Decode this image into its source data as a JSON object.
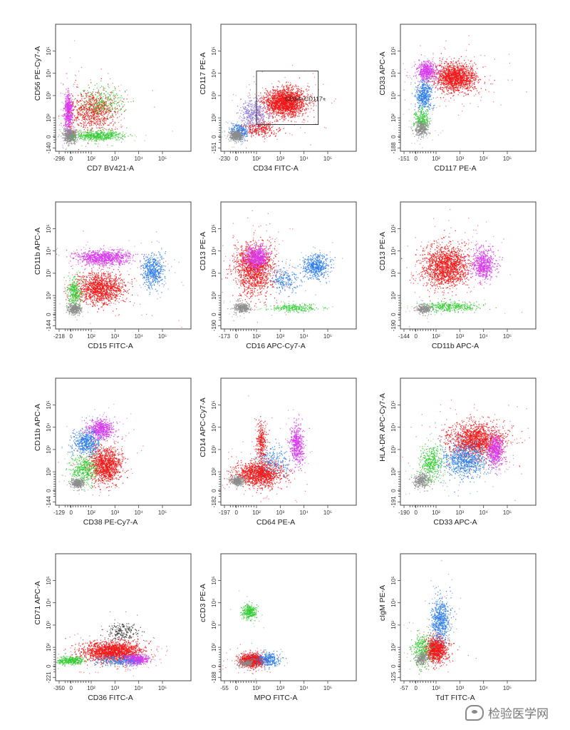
{
  "colors": {
    "red": "#f01818",
    "magenta": "#d838f0",
    "blue": "#2b7de8",
    "green": "#33cc33",
    "gray": "#8c8c8c",
    "purple": "#8a78d8",
    "dark": "#3a3a3a"
  },
  "watermark": {
    "text": "检验医学网",
    "icon": "wechat-icon"
  },
  "chart_data": [
    {
      "type": "scatter",
      "xlabel": "CD7 BV421-A",
      "ylabel": "CD56 PE-Cy7-A",
      "x_ticks": [
        "-296",
        "0",
        "10²",
        "10³",
        "10⁴",
        "10⁵"
      ],
      "y_ticks": [
        "-140",
        "0",
        "10²",
        "10³",
        "10⁴",
        "10⁵"
      ],
      "xlim": [
        -0.4,
        5.3
      ],
      "ylim": [
        -0.4,
        5.3
      ],
      "populations": [
        {
          "color": "gray",
          "center": [
            0.2,
            0.3
          ],
          "spread": [
            0.25,
            0.3
          ],
          "count": 500
        },
        {
          "color": "magenta",
          "center": [
            0.15,
            1.4
          ],
          "spread": [
            0.15,
            0.7
          ],
          "count": 500
        },
        {
          "color": "red",
          "center": [
            1.2,
            1.4
          ],
          "spread": [
            0.9,
            0.8
          ],
          "count": 800
        },
        {
          "color": "green",
          "center": [
            1.4,
            0.3
          ],
          "spread": [
            0.9,
            0.2
          ],
          "count": 500
        },
        {
          "color": "green",
          "center": [
            1.6,
            1.8
          ],
          "spread": [
            0.8,
            0.6
          ],
          "count": 250
        }
      ]
    },
    {
      "type": "scatter",
      "xlabel": "CD34 FITC-A",
      "ylabel": "CD117 PE-A",
      "x_ticks": [
        "-230",
        "0",
        "10²",
        "10³",
        "10⁴",
        "10⁵"
      ],
      "y_ticks": [
        "-151",
        "0",
        "10²",
        "10³",
        "10⁴",
        "10⁵"
      ],
      "xlim": [
        -0.4,
        5.3
      ],
      "ylim": [
        -0.4,
        5.3
      ],
      "gate": {
        "label": "CD34+CD117+",
        "x": [
          1.1,
          3.7
        ],
        "y": [
          0.8,
          3.2
        ]
      },
      "populations": [
        {
          "color": "red",
          "center": [
            2.3,
            1.8
          ],
          "spread": [
            0.75,
            0.55
          ],
          "count": 1900
        },
        {
          "color": "red",
          "center": [
            1.2,
            0.6
          ],
          "spread": [
            0.7,
            0.3
          ],
          "count": 300
        },
        {
          "color": "purple",
          "center": [
            1.0,
            1.3
          ],
          "spread": [
            0.5,
            0.6
          ],
          "count": 400
        },
        {
          "color": "blue",
          "center": [
            0.4,
            0.5
          ],
          "spread": [
            0.35,
            0.3
          ],
          "count": 250
        },
        {
          "color": "gray",
          "center": [
            0.25,
            0.3
          ],
          "spread": [
            0.25,
            0.2
          ],
          "count": 350
        }
      ]
    },
    {
      "type": "scatter",
      "xlabel": "CD117 PE-A",
      "ylabel": "CD33 APC-A",
      "x_ticks": [
        "-151",
        "0",
        "10²",
        "10³",
        "10⁴",
        "10⁵"
      ],
      "y_ticks": [
        "-188",
        "0",
        "10²",
        "10³",
        "10⁴",
        "10⁵"
      ],
      "xlim": [
        -0.4,
        5.3
      ],
      "ylim": [
        -0.4,
        5.3
      ],
      "populations": [
        {
          "color": "red",
          "center": [
            1.9,
            2.9
          ],
          "spread": [
            0.8,
            0.55
          ],
          "count": 1500
        },
        {
          "color": "magenta",
          "center": [
            0.7,
            3.2
          ],
          "spread": [
            0.35,
            0.4
          ],
          "count": 500
        },
        {
          "color": "blue",
          "center": [
            0.6,
            2.1
          ],
          "spread": [
            0.3,
            0.6
          ],
          "count": 450
        },
        {
          "color": "green",
          "center": [
            0.5,
            1.0
          ],
          "spread": [
            0.3,
            0.4
          ],
          "count": 250
        },
        {
          "color": "gray",
          "center": [
            0.5,
            0.6
          ],
          "spread": [
            0.25,
            0.3
          ],
          "count": 300
        }
      ]
    },
    {
      "type": "scatter",
      "xlabel": "CD15 FITC-A",
      "ylabel": "CD11b APC-A",
      "x_ticks": [
        "-218",
        "0",
        "10²",
        "10³",
        "10⁴",
        "10⁵"
      ],
      "y_ticks": [
        "-144",
        "0",
        "10²",
        "10³",
        "10⁴",
        "10⁵"
      ],
      "xlim": [
        -0.4,
        5.3
      ],
      "ylim": [
        -0.4,
        5.3
      ],
      "populations": [
        {
          "color": "magenta",
          "center": [
            1.6,
            2.8
          ],
          "spread": [
            1.0,
            0.3
          ],
          "count": 900
        },
        {
          "color": "red",
          "center": [
            1.5,
            1.4
          ],
          "spread": [
            0.9,
            0.6
          ],
          "count": 1300
        },
        {
          "color": "blue",
          "center": [
            3.7,
            2.2
          ],
          "spread": [
            0.4,
            0.65
          ],
          "count": 500
        },
        {
          "color": "green",
          "center": [
            0.4,
            1.2
          ],
          "spread": [
            0.25,
            0.6
          ],
          "count": 300
        },
        {
          "color": "gray",
          "center": [
            0.4,
            0.5
          ],
          "spread": [
            0.25,
            0.2
          ],
          "count": 300
        }
      ]
    },
    {
      "type": "scatter",
      "xlabel": "CD16 APC-Cy7-A",
      "ylabel": "CD13 PE-A",
      "x_ticks": [
        "-173",
        "0",
        "10²",
        "10³",
        "10⁴",
        "10⁵"
      ],
      "y_ticks": [
        "-190",
        "0",
        "10²",
        "10³",
        "10⁴",
        "10⁵"
      ],
      "xlim": [
        -0.4,
        5.3
      ],
      "ylim": [
        -0.4,
        5.3
      ],
      "populations": [
        {
          "color": "red",
          "center": [
            1.0,
            2.3
          ],
          "spread": [
            0.7,
            1.0
          ],
          "count": 1400
        },
        {
          "color": "magenta",
          "center": [
            1.1,
            2.8
          ],
          "spread": [
            0.45,
            0.45
          ],
          "count": 600
        },
        {
          "color": "blue",
          "center": [
            3.6,
            2.4
          ],
          "spread": [
            0.5,
            0.45
          ],
          "count": 500
        },
        {
          "color": "blue",
          "center": [
            2.3,
            1.8
          ],
          "spread": [
            0.6,
            0.5
          ],
          "count": 200
        },
        {
          "color": "green",
          "center": [
            2.7,
            0.55
          ],
          "spread": [
            1.0,
            0.15
          ],
          "count": 250
        },
        {
          "color": "gray",
          "center": [
            0.5,
            0.55
          ],
          "spread": [
            0.3,
            0.2
          ],
          "count": 300
        }
      ]
    },
    {
      "type": "scatter",
      "xlabel": "CD11b APC-A",
      "ylabel": "CD13 PE-A",
      "x_ticks": [
        "-144",
        "0",
        "10²",
        "10³",
        "10⁴",
        "10⁵"
      ],
      "y_ticks": [
        "-190",
        "0",
        "10²",
        "10³",
        "10⁴",
        "10⁵"
      ],
      "xlim": [
        -0.4,
        5.3
      ],
      "ylim": [
        -0.4,
        5.3
      ],
      "populations": [
        {
          "color": "red",
          "center": [
            1.5,
            2.4
          ],
          "spread": [
            0.85,
            0.8
          ],
          "count": 1600
        },
        {
          "color": "magenta",
          "center": [
            3.1,
            2.5
          ],
          "spread": [
            0.45,
            0.6
          ],
          "count": 600
        },
        {
          "color": "green",
          "center": [
            1.7,
            0.6
          ],
          "spread": [
            1.0,
            0.2
          ],
          "count": 350
        },
        {
          "color": "gray",
          "center": [
            0.6,
            0.5
          ],
          "spread": [
            0.3,
            0.2
          ],
          "count": 250
        }
      ]
    },
    {
      "type": "scatter",
      "xlabel": "CD38 PE-Cy7-A",
      "ylabel": "CD11b APC-A",
      "x_ticks": [
        "-129",
        "0",
        "10²",
        "10³",
        "10⁴",
        "10⁵"
      ],
      "y_ticks": [
        "-144",
        "0",
        "10²",
        "10³",
        "10⁴",
        "10⁵"
      ],
      "xlim": [
        -0.4,
        5.3
      ],
      "ylim": [
        -0.4,
        5.3
      ],
      "populations": [
        {
          "color": "magenta",
          "center": [
            1.5,
            3.0
          ],
          "spread": [
            0.45,
            0.4
          ],
          "count": 600
        },
        {
          "color": "blue",
          "center": [
            0.9,
            2.4
          ],
          "spread": [
            0.5,
            0.5
          ],
          "count": 500
        },
        {
          "color": "red",
          "center": [
            1.7,
            1.4
          ],
          "spread": [
            0.6,
            0.7
          ],
          "count": 1200
        },
        {
          "color": "green",
          "center": [
            0.8,
            1.2
          ],
          "spread": [
            0.5,
            0.6
          ],
          "count": 400
        },
        {
          "color": "gray",
          "center": [
            0.5,
            0.6
          ],
          "spread": [
            0.25,
            0.2
          ],
          "count": 300
        }
      ]
    },
    {
      "type": "scatter",
      "xlabel": "CD64 PE-A",
      "ylabel": "CD14 APC-Cy7-A",
      "x_ticks": [
        "-197",
        "0",
        "10²",
        "10³",
        "10⁴",
        "10⁵"
      ],
      "y_ticks": [
        "-182",
        "0",
        "10²",
        "10³",
        "10⁴",
        "10⁵"
      ],
      "xlim": [
        -0.4,
        5.3
      ],
      "ylim": [
        -0.4,
        5.3
      ],
      "populations": [
        {
          "color": "red",
          "center": [
            1.2,
            1.0
          ],
          "spread": [
            0.9,
            0.5
          ],
          "count": 1300
        },
        {
          "color": "red",
          "center": [
            1.3,
            2.4
          ],
          "spread": [
            0.2,
            0.8
          ],
          "count": 300
        },
        {
          "color": "magenta",
          "center": [
            2.8,
            2.3
          ],
          "spread": [
            0.25,
            0.8
          ],
          "count": 500
        },
        {
          "color": "blue",
          "center": [
            1.8,
            1.6
          ],
          "spread": [
            0.6,
            0.6
          ],
          "count": 200
        },
        {
          "color": "gray",
          "center": [
            0.3,
            0.7
          ],
          "spread": [
            0.25,
            0.2
          ],
          "count": 300
        }
      ]
    },
    {
      "type": "scatter",
      "xlabel": "CD33 APC-A",
      "ylabel": "HLA-DR APC-Cy7-A",
      "x_ticks": [
        "-190",
        "0",
        "10²",
        "10³",
        "10⁴",
        "10⁵"
      ],
      "y_ticks": [
        "-191",
        "0",
        "10²",
        "10³",
        "10⁴",
        "10⁵"
      ],
      "xlim": [
        -0.4,
        5.3
      ],
      "ylim": [
        -0.4,
        5.3
      ],
      "populations": [
        {
          "color": "red",
          "center": [
            2.8,
            2.5
          ],
          "spread": [
            1.0,
            0.7
          ],
          "count": 1600
        },
        {
          "color": "blue",
          "center": [
            2.3,
            1.6
          ],
          "spread": [
            0.8,
            0.7
          ],
          "count": 800
        },
        {
          "color": "magenta",
          "center": [
            3.6,
            2.0
          ],
          "spread": [
            0.3,
            0.6
          ],
          "count": 500
        },
        {
          "color": "green",
          "center": [
            0.9,
            1.5
          ],
          "spread": [
            0.4,
            0.7
          ],
          "count": 400
        },
        {
          "color": "gray",
          "center": [
            0.5,
            0.7
          ],
          "spread": [
            0.3,
            0.3
          ],
          "count": 300
        }
      ]
    },
    {
      "type": "scatter",
      "xlabel": "CD36 FITC-A",
      "ylabel": "CD71 APC-A",
      "x_ticks": [
        "-350",
        "0",
        "10²",
        "10³",
        "10⁴",
        "10⁵"
      ],
      "y_ticks": [
        "-221",
        "0",
        "10²",
        "10³",
        "10⁴",
        "10⁵"
      ],
      "xlim": [
        -0.4,
        5.3
      ],
      "ylim": [
        -0.4,
        5.3
      ],
      "populations": [
        {
          "color": "red",
          "center": [
            2.0,
            0.9
          ],
          "spread": [
            1.1,
            0.4
          ],
          "count": 1800
        },
        {
          "color": "magenta",
          "center": [
            3.0,
            0.55
          ],
          "spread": [
            0.45,
            0.2
          ],
          "count": 500
        },
        {
          "color": "blue",
          "center": [
            2.2,
            0.5
          ],
          "spread": [
            0.9,
            0.2
          ],
          "count": 250
        },
        {
          "color": "green",
          "center": [
            0.2,
            0.5
          ],
          "spread": [
            0.5,
            0.15
          ],
          "count": 350
        },
        {
          "color": "dark",
          "center": [
            2.4,
            1.8
          ],
          "spread": [
            0.5,
            0.35
          ],
          "count": 200
        }
      ]
    },
    {
      "type": "scatter",
      "xlabel": "MPO FITC-A",
      "ylabel": "cCD3 PE-A",
      "x_ticks": [
        "-55",
        "0",
        "10²",
        "10³",
        "10⁴",
        "10⁵"
      ],
      "y_ticks": [
        "-188",
        "0",
        "10²",
        "10³",
        "10⁴",
        "10⁵"
      ],
      "xlim": [
        -0.4,
        5.3
      ],
      "ylim": [
        -0.4,
        5.3
      ],
      "populations": [
        {
          "color": "red",
          "center": [
            0.9,
            0.5
          ],
          "spread": [
            0.45,
            0.25
          ],
          "count": 1200
        },
        {
          "color": "blue",
          "center": [
            1.6,
            0.55
          ],
          "spread": [
            0.45,
            0.25
          ],
          "count": 300
        },
        {
          "color": "green",
          "center": [
            0.8,
            2.7
          ],
          "spread": [
            0.25,
            0.3
          ],
          "count": 300
        },
        {
          "color": "gray",
          "center": [
            0.7,
            0.4
          ],
          "spread": [
            0.3,
            0.15
          ],
          "count": 150
        }
      ]
    },
    {
      "type": "scatter",
      "xlabel": "TdT FITC-A",
      "ylabel": "cIgM PE-A",
      "x_ticks": [
        "-57",
        "0",
        "10²",
        "10³",
        "10⁴",
        "10⁵"
      ],
      "y_ticks": [
        "-125",
        "0",
        "10²",
        "10³",
        "10⁴",
        "10⁵"
      ],
      "xlim": [
        -0.4,
        5.3
      ],
      "ylim": [
        -0.4,
        5.3
      ],
      "populations": [
        {
          "color": "red",
          "center": [
            1.1,
            1.0
          ],
          "spread": [
            0.4,
            0.5
          ],
          "count": 1000
        },
        {
          "color": "blue",
          "center": [
            1.3,
            2.3
          ],
          "spread": [
            0.35,
            0.9
          ],
          "count": 600
        },
        {
          "color": "green",
          "center": [
            0.5,
            1.0
          ],
          "spread": [
            0.35,
            0.7
          ],
          "count": 300
        },
        {
          "color": "gray",
          "center": [
            0.5,
            0.6
          ],
          "spread": [
            0.25,
            0.25
          ],
          "count": 200
        }
      ]
    }
  ]
}
